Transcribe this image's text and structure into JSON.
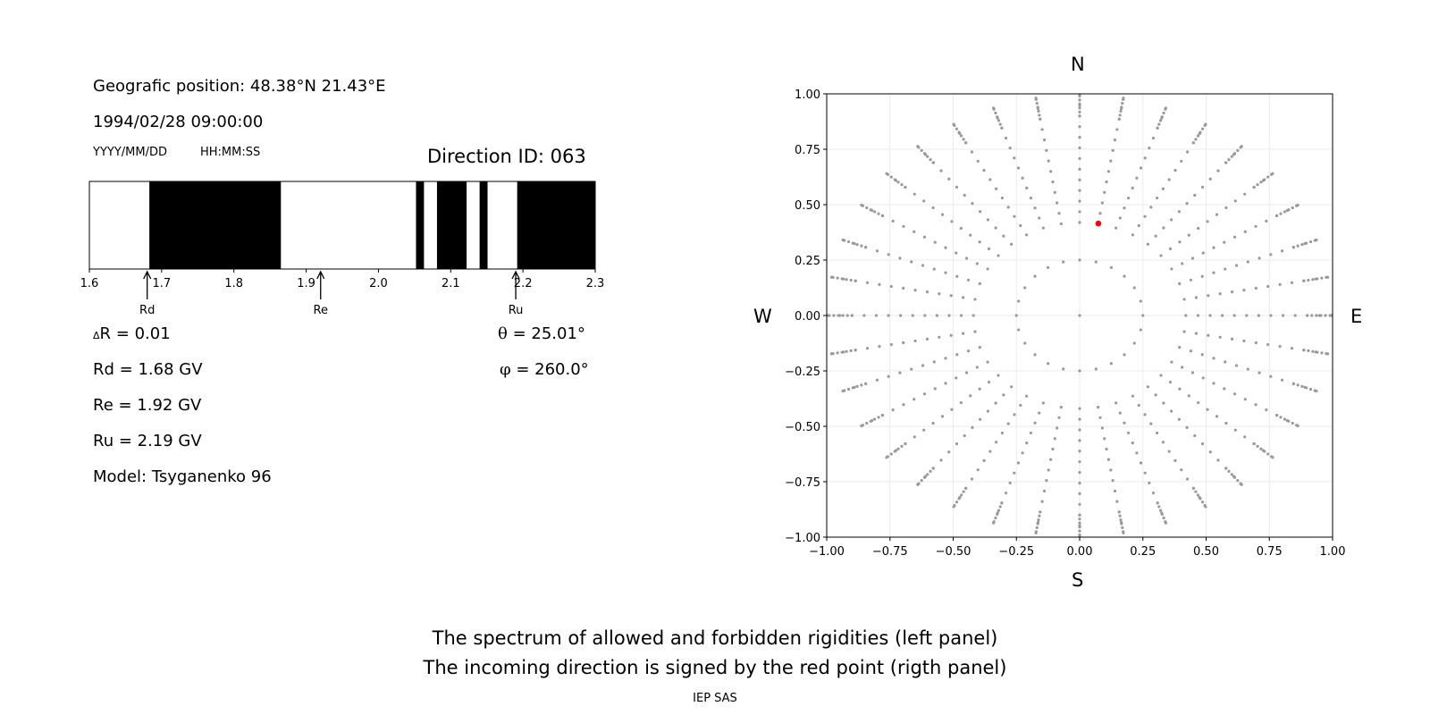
{
  "left": {
    "position": "Geografic position: 48.38°N 21.43°E",
    "datetime": "1994/02/28 09:00:00",
    "date_fmt": "YYYY/MM/DD",
    "time_fmt": "HH:MM:SS",
    "direction": "Direction ID: 063",
    "delta_r_symbol": "Δ",
    "delta_r": "R = 0.01",
    "rd": "Rd = 1.68 GV",
    "re": "Re = 1.92 GV",
    "ru": "Ru = 2.19 GV",
    "model": "Model: Tsyganenko 96",
    "theta_symbol": "θ",
    "theta": "= 25.01°",
    "phi_symbol": "φ",
    "phi": "= 260.0°"
  },
  "compass": {
    "n": "N",
    "s": "S",
    "w": "W",
    "e": "E"
  },
  "footer": {
    "line1": "The spectrum of allowed and forbidden rigidities (left panel)",
    "line2": "The incoming direction is signed by the red point (rigth panel)",
    "credit": "IEP SAS"
  },
  "chart_data": [
    {
      "type": "bar",
      "xlim": [
        1.6,
        2.3
      ],
      "ticks": [
        "1.6",
        "1.7",
        "1.8",
        "1.9",
        "2.0",
        "2.1",
        "2.2",
        "2.3"
      ],
      "forbidden_bands": [
        [
          1.683,
          1.865
        ],
        [
          2.052,
          2.063
        ],
        [
          2.081,
          2.122
        ],
        [
          2.14,
          2.151
        ],
        [
          2.192,
          2.3
        ]
      ],
      "markers": [
        {
          "label": "Rd",
          "value": 1.68
        },
        {
          "label": "Re",
          "value": 1.92
        },
        {
          "label": "Ru",
          "value": 2.19
        }
      ],
      "color_forbidden": "#000000",
      "color_allowed": "#ffffff"
    },
    {
      "type": "scatter",
      "xlim": [
        -1.0,
        1.0
      ],
      "ylim": [
        -1.0,
        1.0
      ],
      "xticks": [
        "−1.00",
        "−0.75",
        "−0.50",
        "−0.25",
        "0.00",
        "0.25",
        "0.50",
        "0.75",
        "1.00"
      ],
      "yticks": [
        "−1.00",
        "−0.75",
        "−0.50",
        "−0.25",
        "0.00",
        "0.25",
        "0.50",
        "0.75",
        "1.00"
      ],
      "grid": true,
      "grid_rings": {
        "radii": [
          0.25,
          0.42
        ],
        "counts": [
          24,
          36
        ]
      },
      "grid_rays": {
        "count": 36,
        "r_start": 0.42,
        "r_end": 1.0,
        "step": 0.048
      },
      "center_point": [
        0,
        0
      ],
      "point_color": "#999999",
      "highlight": {
        "x": 0.074,
        "y": 0.415,
        "color": "#ff0000"
      }
    }
  ]
}
